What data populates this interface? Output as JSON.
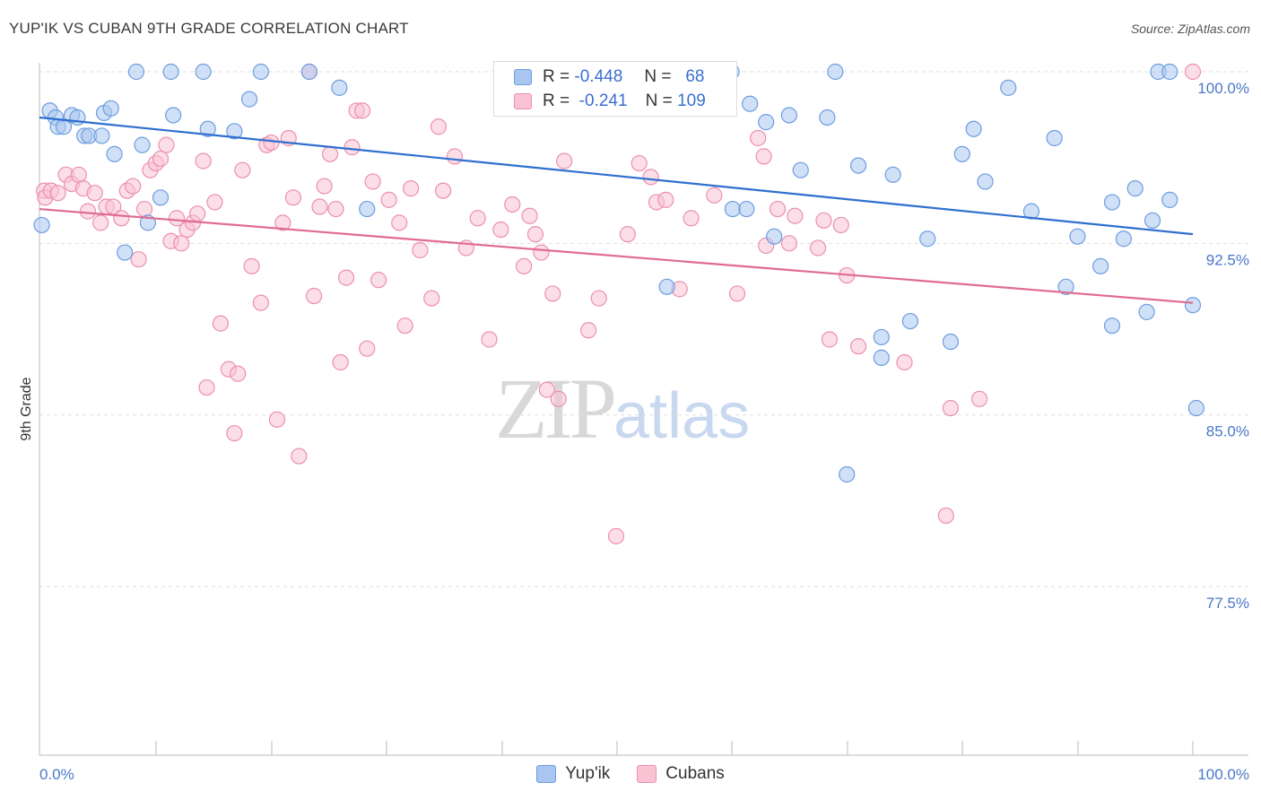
{
  "header": {
    "title": "YUP'IK VS CUBAN 9TH GRADE CORRELATION CHART",
    "source": "Source: ZipAtlas.com"
  },
  "watermark": {
    "zip": "ZIP",
    "atlas": "atlas"
  },
  "legend": {
    "rows": [
      {
        "r_label": "R =",
        "r_value": "-0.448",
        "n_label": "N =",
        "n_value": "68",
        "color": "#a9c6f0",
        "border": "#6d9de0"
      },
      {
        "r_label": "R =",
        "r_value": "-0.241",
        "n_label": "N =",
        "n_value": "109",
        "color": "#f9c3d4",
        "border": "#ec8fae"
      }
    ]
  },
  "bottom_legend": [
    {
      "label": "Yup'ik",
      "color": "#a9c6f0",
      "border": "#6d9de0"
    },
    {
      "label": "Cubans",
      "color": "#f9c3d4",
      "border": "#ec8fae"
    }
  ],
  "chart_data": {
    "type": "scatter",
    "ylabel": "9th Grade",
    "xlim": [
      0,
      100
    ],
    "ylim": [
      70.0,
      101.0
    ],
    "x_tick_labels": [
      "0.0%",
      "100.0%"
    ],
    "y_ticks": [
      {
        "value": 100.0,
        "label": "100.0%"
      },
      {
        "value": 92.5,
        "label": "92.5%"
      },
      {
        "value": 85.0,
        "label": "85.0%"
      },
      {
        "value": 77.5,
        "label": "77.5%"
      }
    ],
    "series": [
      {
        "name": "Yup'ik",
        "color": "#6d9de0",
        "fill": "#a9c6f0",
        "trend": {
          "x": [
            0,
            100
          ],
          "y": [
            98.0,
            92.9
          ]
        },
        "points": [
          [
            0.2,
            93.3
          ],
          [
            0.9,
            98.3
          ],
          [
            1.4,
            98.0
          ],
          [
            1.6,
            97.6
          ],
          [
            2.1,
            97.6
          ],
          [
            2.8,
            98.1
          ],
          [
            3.3,
            98.0
          ],
          [
            3.9,
            97.2
          ],
          [
            4.3,
            97.2
          ],
          [
            5.4,
            97.2
          ],
          [
            5.6,
            98.2
          ],
          [
            6.2,
            98.4
          ],
          [
            6.5,
            96.4
          ],
          [
            7.4,
            92.1
          ],
          [
            8.4,
            100.0
          ],
          [
            8.9,
            96.8
          ],
          [
            9.4,
            93.4
          ],
          [
            10.5,
            94.5
          ],
          [
            11.4,
            100.0
          ],
          [
            11.6,
            98.1
          ],
          [
            14.2,
            100.0
          ],
          [
            14.6,
            97.5
          ],
          [
            16.9,
            97.4
          ],
          [
            18.2,
            98.8
          ],
          [
            19.2,
            100.0
          ],
          [
            23.4,
            100.0
          ],
          [
            26.0,
            99.3
          ],
          [
            28.4,
            94.0
          ],
          [
            50.6,
            100.0
          ],
          [
            54.4,
            90.6
          ],
          [
            60.0,
            100.0
          ],
          [
            60.1,
            94.0
          ],
          [
            61.3,
            94.0
          ],
          [
            61.6,
            98.6
          ],
          [
            63.0,
            97.8
          ],
          [
            63.7,
            92.8
          ],
          [
            65.0,
            98.1
          ],
          [
            66.0,
            95.7
          ],
          [
            68.3,
            98.0
          ],
          [
            69.0,
            100.0
          ],
          [
            70.0,
            82.4
          ],
          [
            71.0,
            95.9
          ],
          [
            73.0,
            88.4
          ],
          [
            73.0,
            87.5
          ],
          [
            74.0,
            95.5
          ],
          [
            75.5,
            89.1
          ],
          [
            77.0,
            92.7
          ],
          [
            79.0,
            88.2
          ],
          [
            80.0,
            96.4
          ],
          [
            81.0,
            97.5
          ],
          [
            82.0,
            95.2
          ],
          [
            84.0,
            99.3
          ],
          [
            86.0,
            93.9
          ],
          [
            88.0,
            97.1
          ],
          [
            89.0,
            90.6
          ],
          [
            90.0,
            92.8
          ],
          [
            92.0,
            91.5
          ],
          [
            93.0,
            94.3
          ],
          [
            93.0,
            88.9
          ],
          [
            94.0,
            92.7
          ],
          [
            95.0,
            94.9
          ],
          [
            96.0,
            89.5
          ],
          [
            96.5,
            93.5
          ],
          [
            97.0,
            100.0
          ],
          [
            98.0,
            100.0
          ],
          [
            98.0,
            94.4
          ],
          [
            100.0,
            89.8
          ],
          [
            100.3,
            85.3
          ]
        ]
      },
      {
        "name": "Cubans",
        "color": "#ec8fae",
        "fill": "#f9c3d4",
        "trend": {
          "x": [
            0,
            100
          ],
          "y": [
            94.0,
            89.9
          ]
        },
        "points": [
          [
            0.4,
            94.8
          ],
          [
            0.5,
            94.5
          ],
          [
            1.0,
            94.8
          ],
          [
            1.6,
            94.7
          ],
          [
            2.3,
            95.5
          ],
          [
            2.8,
            95.1
          ],
          [
            3.4,
            95.5
          ],
          [
            3.8,
            94.9
          ],
          [
            4.2,
            93.9
          ],
          [
            4.8,
            94.7
          ],
          [
            5.3,
            93.4
          ],
          [
            5.8,
            94.1
          ],
          [
            6.4,
            94.1
          ],
          [
            7.1,
            93.6
          ],
          [
            7.6,
            94.8
          ],
          [
            8.1,
            95.0
          ],
          [
            8.6,
            91.8
          ],
          [
            9.1,
            94.0
          ],
          [
            9.6,
            95.7
          ],
          [
            10.1,
            96.0
          ],
          [
            10.5,
            96.2
          ],
          [
            11.0,
            96.8
          ],
          [
            11.4,
            92.6
          ],
          [
            11.9,
            93.6
          ],
          [
            12.3,
            92.5
          ],
          [
            12.8,
            93.1
          ],
          [
            13.3,
            93.4
          ],
          [
            13.7,
            93.8
          ],
          [
            14.2,
            96.1
          ],
          [
            14.5,
            86.2
          ],
          [
            15.2,
            94.3
          ],
          [
            15.7,
            89.0
          ],
          [
            16.4,
            87.0
          ],
          [
            16.9,
            84.2
          ],
          [
            17.2,
            86.8
          ],
          [
            17.6,
            95.7
          ],
          [
            18.4,
            91.5
          ],
          [
            19.2,
            89.9
          ],
          [
            19.7,
            96.8
          ],
          [
            20.1,
            96.9
          ],
          [
            20.6,
            84.8
          ],
          [
            21.1,
            93.4
          ],
          [
            21.6,
            97.1
          ],
          [
            22.0,
            94.5
          ],
          [
            22.5,
            83.2
          ],
          [
            23.4,
            100.0
          ],
          [
            23.8,
            90.2
          ],
          [
            24.3,
            94.1
          ],
          [
            24.7,
            95.0
          ],
          [
            25.2,
            96.4
          ],
          [
            25.7,
            94.0
          ],
          [
            26.1,
            87.3
          ],
          [
            26.6,
            91.0
          ],
          [
            27.1,
            96.7
          ],
          [
            27.5,
            98.3
          ],
          [
            28.0,
            98.3
          ],
          [
            28.4,
            87.9
          ],
          [
            28.9,
            95.2
          ],
          [
            29.4,
            90.9
          ],
          [
            30.3,
            94.4
          ],
          [
            31.2,
            93.4
          ],
          [
            31.7,
            88.9
          ],
          [
            32.2,
            94.9
          ],
          [
            33.0,
            92.2
          ],
          [
            34.0,
            90.1
          ],
          [
            34.6,
            97.6
          ],
          [
            35.0,
            94.8
          ],
          [
            36.0,
            96.3
          ],
          [
            37.0,
            92.3
          ],
          [
            38.0,
            93.6
          ],
          [
            39.0,
            88.3
          ],
          [
            40.0,
            93.1
          ],
          [
            41.0,
            94.2
          ],
          [
            42.0,
            91.5
          ],
          [
            42.5,
            93.7
          ],
          [
            43.0,
            92.9
          ],
          [
            43.5,
            92.1
          ],
          [
            44.0,
            86.1
          ],
          [
            44.5,
            90.3
          ],
          [
            45.0,
            85.7
          ],
          [
            45.5,
            96.1
          ],
          [
            47.6,
            88.7
          ],
          [
            48.5,
            90.1
          ],
          [
            50.0,
            79.7
          ],
          [
            51.0,
            92.9
          ],
          [
            52.0,
            96.0
          ],
          [
            53.0,
            95.4
          ],
          [
            53.5,
            94.3
          ],
          [
            54.3,
            94.4
          ],
          [
            55.5,
            90.5
          ],
          [
            56.5,
            93.6
          ],
          [
            58.5,
            94.6
          ],
          [
            60.5,
            90.3
          ],
          [
            62.3,
            97.1
          ],
          [
            62.8,
            96.3
          ],
          [
            63.0,
            92.4
          ],
          [
            64.0,
            94.0
          ],
          [
            65.0,
            92.5
          ],
          [
            65.5,
            93.7
          ],
          [
            67.5,
            92.3
          ],
          [
            68.0,
            93.5
          ],
          [
            68.5,
            88.3
          ],
          [
            69.5,
            93.3
          ],
          [
            70.0,
            91.1
          ],
          [
            71.0,
            88.0
          ],
          [
            75.0,
            87.3
          ],
          [
            78.6,
            80.6
          ],
          [
            79.0,
            85.3
          ],
          [
            81.5,
            85.7
          ],
          [
            100.0,
            100.0
          ]
        ]
      }
    ]
  }
}
